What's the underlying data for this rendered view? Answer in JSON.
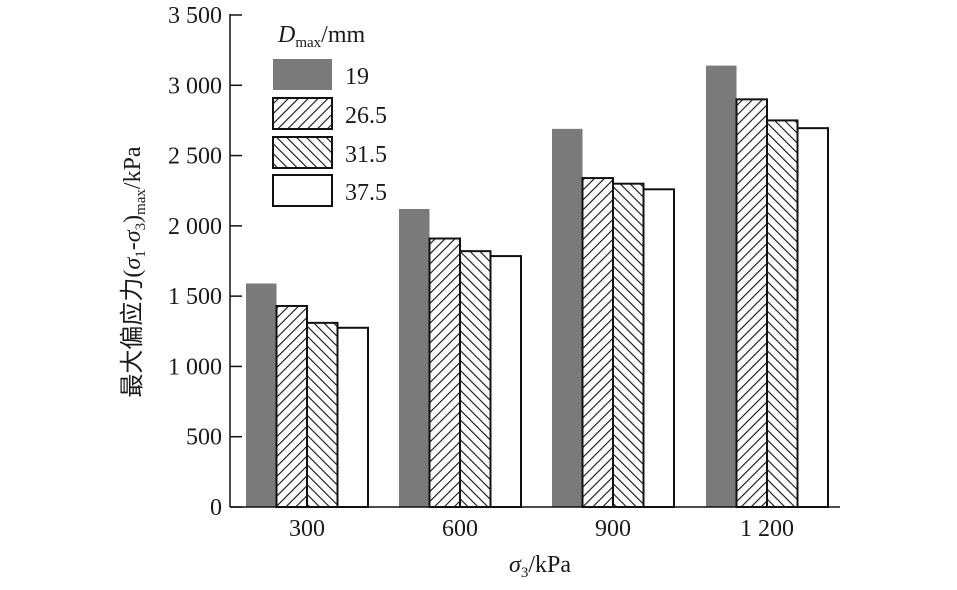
{
  "chart_data": {
    "type": "bar",
    "title": "",
    "xlabel": "σ3/kPa",
    "xlabel_parts": {
      "symbol": "σ",
      "sub": "3",
      "unit": "/kPa"
    },
    "ylabel": "最大偏应力(σ1-σ3)max/kPa",
    "ylabel_parts": {
      "prefix": "最大偏应力(",
      "s1": "σ",
      "s1sub": "1",
      "dash": "-",
      "s3": "σ",
      "s3sub": "3",
      "close": ")",
      "maxsub": "max",
      "unit": "/kPa"
    },
    "categories": [
      "300",
      "600",
      "900",
      "1 200"
    ],
    "ylim": [
      0,
      3500
    ],
    "yticks": [
      0,
      500,
      1000,
      1500,
      2000,
      2500,
      3000,
      3500
    ],
    "ytick_labels": [
      "0",
      "500",
      "1 000",
      "1 500",
      "2 000",
      "2 500",
      "3 000",
      "3 500"
    ],
    "legend": {
      "title_symbol": "D",
      "title_sub": "max",
      "title_unit": "/mm",
      "placement": "top-left"
    },
    "series": [
      {
        "name": "19",
        "fill": "solid-gray",
        "color": "#7a7a7a",
        "values": [
          1590,
          2120,
          2690,
          3140
        ]
      },
      {
        "name": "26.5",
        "fill": "hatch-forward",
        "values": [
          1430,
          1910,
          2340,
          2900
        ]
      },
      {
        "name": "31.5",
        "fill": "hatch-backward",
        "values": [
          1310,
          1820,
          2300,
          2750
        ]
      },
      {
        "name": "37.5",
        "fill": "white",
        "values": [
          1275,
          1785,
          2260,
          2695
        ]
      }
    ],
    "grid": false
  }
}
